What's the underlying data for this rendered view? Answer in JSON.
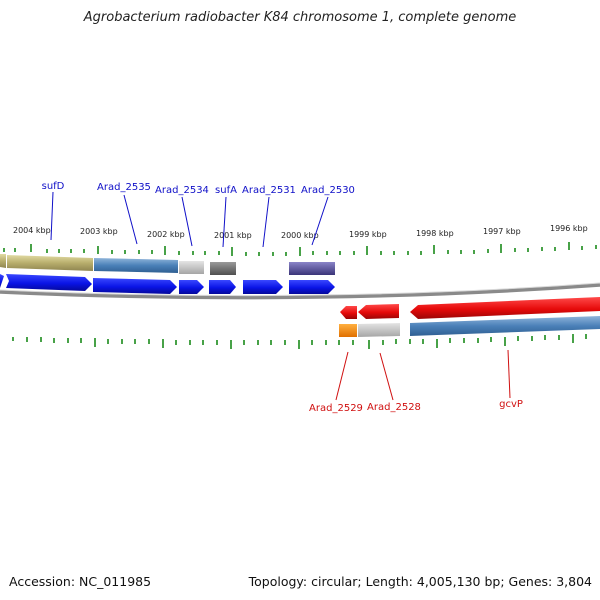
{
  "title": "Agrobacterium radiobacter K84 chromosome 1, complete genome",
  "footer": {
    "accession": "Accession: NC_011985",
    "summary": "Topology: circular; Length: 4,005,130 bp; Genes: 3,804"
  },
  "scale_labels": [
    "2004 kbp",
    "2003 kbp",
    "2002 kbp",
    "2001 kbp",
    "2000 kbp",
    "1999 kbp",
    "1998 kbp",
    "1997 kbp",
    "1996 kbp"
  ],
  "genes_top": [
    "sufD",
    "Arad_2535",
    "Arad_2534",
    "sufA",
    "Arad_2531",
    "Arad_2530"
  ],
  "genes_bottom": [
    "Arad_2529",
    "Arad_2528",
    "gcvP"
  ],
  "colors": {
    "forward_cds": "#0a14e6",
    "reverse_cds": "#e60a0a",
    "backbone": "#8a8a8a",
    "tick": "#1a8a1a",
    "label_top": "#1010c8",
    "label_bottom": "#d01010"
  }
}
